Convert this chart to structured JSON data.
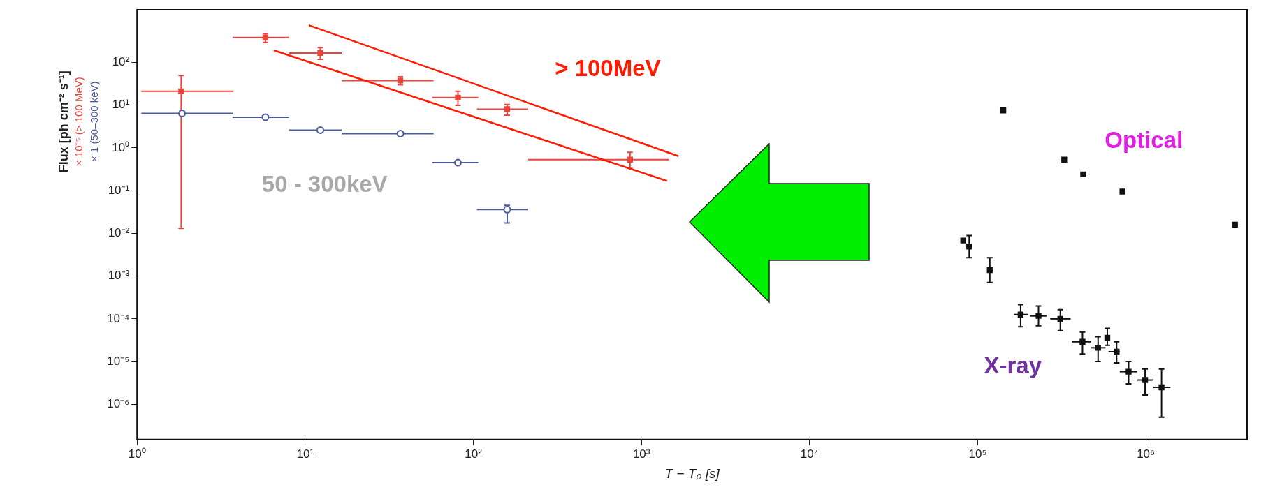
{
  "chart_data": {
    "type": "scatter",
    "xlabel": "T − T₀ [s]",
    "ylabel": "Flux [ph cm⁻² s⁻¹]",
    "log": "xy",
    "grid": false,
    "xlim": [
      1,
      4000000
    ],
    "ylim": [
      1.5e-07,
      1700
    ],
    "xticks": [
      {
        "value": 1,
        "label": "10⁰"
      },
      {
        "value": 10,
        "label": "10¹"
      },
      {
        "value": 100,
        "label": "10²"
      },
      {
        "value": 1000,
        "label": "10³"
      },
      {
        "value": 10000,
        "label": "10⁴"
      },
      {
        "value": 100000,
        "label": "10⁵"
      },
      {
        "value": 1000000,
        "label": "10⁶"
      }
    ],
    "yticks": [
      {
        "value": 1e-06,
        "label": "10⁻⁶"
      },
      {
        "value": 1e-05,
        "label": "10⁻⁵"
      },
      {
        "value": 0.0001,
        "label": "10⁻⁴"
      },
      {
        "value": 0.001,
        "label": "10⁻³"
      },
      {
        "value": 0.01,
        "label": "10⁻²"
      },
      {
        "value": 0.1,
        "label": "10⁻¹"
      },
      {
        "value": 1,
        "label": "10⁰"
      },
      {
        "value": 10,
        "label": "10¹"
      },
      {
        "value": 100,
        "label": "10²"
      }
    ],
    "series": [
      {
        "name": "× 10⁻⁵ (> 100 MeV)",
        "color": "#e8453c",
        "marker": "square",
        "x": [
          1.83,
          5.8,
          12.3,
          36.8,
          81,
          159,
          855
        ],
        "values": [
          21,
          383,
          166,
          37.6,
          15,
          8.0,
          0.53
        ],
        "errors": [
          [
            0.013,
            49
          ],
          [
            293,
            470
          ],
          [
            118,
            222
          ],
          [
            30,
            46
          ],
          [
            9.9,
            21
          ],
          [
            5.8,
            10.3
          ],
          [
            0.33,
            0.79
          ]
        ],
        "xerrors": [
          [
            1.06,
            3.73
          ],
          [
            3.7,
            8.0
          ],
          [
            8.0,
            16.5
          ],
          [
            16.5,
            58
          ],
          [
            57,
            107
          ],
          [
            105,
            212
          ],
          [
            212,
            1456
          ]
        ]
      },
      {
        "name": "× 1 (50–300 keV)",
        "color": "#4a5a9c",
        "marker": "circle",
        "x": [
          1.85,
          5.8,
          12.3,
          36.8,
          81,
          159
        ],
        "values": [
          6.4,
          5.2,
          2.6,
          2.15,
          0.45,
          0.036
        ],
        "errors": [
          null,
          null,
          null,
          null,
          null,
          [
            0.0175,
            0.045
          ]
        ],
        "xerrors": [
          [
            1.06,
            3.73
          ],
          [
            3.7,
            8.0
          ],
          [
            8.0,
            16.5
          ],
          [
            16.5,
            58
          ],
          [
            57,
            107
          ],
          [
            105,
            212
          ]
        ]
      },
      {
        "color": "#111111",
        "marker": "square",
        "x": [
          142000,
          327000,
          424000,
          726000,
          3390000
        ],
        "values": [
          7.5,
          0.53,
          0.24,
          0.095,
          0.016
        ]
      },
      {
        "color": "#111111",
        "marker": "square",
        "x": [
          82000,
          89000,
          118000,
          180000,
          230000,
          310000,
          420000,
          520000,
          590000,
          670000,
          790000,
          990000,
          1240000
        ],
        "values": [
          0.0068,
          0.0049,
          0.00138,
          0.000126,
          0.000117,
          0.0001,
          2.9e-05,
          2.1e-05,
          3.6e-05,
          1.7e-05,
          5.8e-06,
          3.7e-06,
          2.5e-06
        ],
        "errors": [
          null,
          [
            0.0027,
            0.0089
          ],
          [
            0.00071,
            0.0027
          ],
          [
            6.5e-05,
            0.000214
          ],
          [
            6.9e-05,
            0.0002
          ],
          [
            5.3e-05,
            0.000164
          ],
          [
            1.5e-05,
            4.9e-05
          ],
          [
            1e-05,
            3.8e-05
          ],
          [
            2.4e-05,
            6e-05
          ],
          [
            9.3e-06,
            2.9e-05
          ],
          [
            3e-06,
            1e-05
          ],
          [
            1.65e-06,
            6.7e-06
          ],
          [
            5e-07,
            6.7e-06
          ]
        ],
        "xerrors": [
          null,
          null,
          null,
          [
            164000,
            200000
          ],
          [
            204000,
            257000
          ],
          [
            270000,
            357000
          ],
          [
            363000,
            473000
          ],
          [
            473000,
            576000
          ],
          null,
          [
            600000,
            700000
          ],
          [
            700000,
            890000
          ],
          [
            890000,
            1110000
          ],
          [
            1110000,
            1400000
          ]
        ]
      },
      {
        "type": "line",
        "color": "#ff1a00",
        "marker": "none",
        "x": [
          10.5,
          1660
        ],
        "values": [
          741,
          0.64
        ]
      },
      {
        "type": "line",
        "color": "#ff1a00",
        "marker": "none",
        "x": [
          6.5,
          1420
        ],
        "values": [
          192,
          0.168
        ]
      }
    ],
    "annotations": [
      "> 100MeV",
      "50 - 300keV",
      "Optical",
      "X-ray"
    ]
  }
}
